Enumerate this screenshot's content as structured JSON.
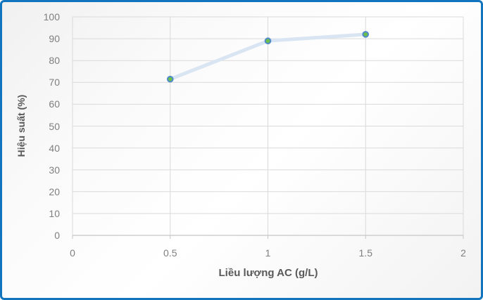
{
  "chart_data": {
    "type": "line",
    "title": "",
    "xlabel": "Liều lượng AC (g/L)",
    "ylabel": "Hiệu suất (%)",
    "x": [
      0.5,
      1,
      1.5
    ],
    "series": [
      {
        "name": "Hiệu suất",
        "values": [
          71.5,
          89,
          92
        ]
      }
    ],
    "xlim": [
      0,
      2
    ],
    "ylim": [
      0,
      100
    ],
    "x_ticks": [
      "0",
      "0.5",
      "1",
      "1.5",
      "2"
    ],
    "x_tick_values": [
      0,
      0.5,
      1,
      1.5,
      2
    ],
    "y_ticks": [
      "0",
      "10",
      "20",
      "30",
      "40",
      "50",
      "60",
      "70",
      "80",
      "90",
      "100"
    ],
    "y_tick_values": [
      0,
      10,
      20,
      30,
      40,
      50,
      60,
      70,
      80,
      90,
      100
    ],
    "grid": "both",
    "legend": "none",
    "colors": {
      "line": "#D9E5F2",
      "marker_fill": "#6EBE4A",
      "marker_stroke": "#4E8BC8",
      "gridline": "#DADADA",
      "axis_line": "#C6C6C6",
      "tick_label": "#7F7F7F",
      "axis_title": "#595959",
      "chart_border": "#1274BC"
    }
  }
}
